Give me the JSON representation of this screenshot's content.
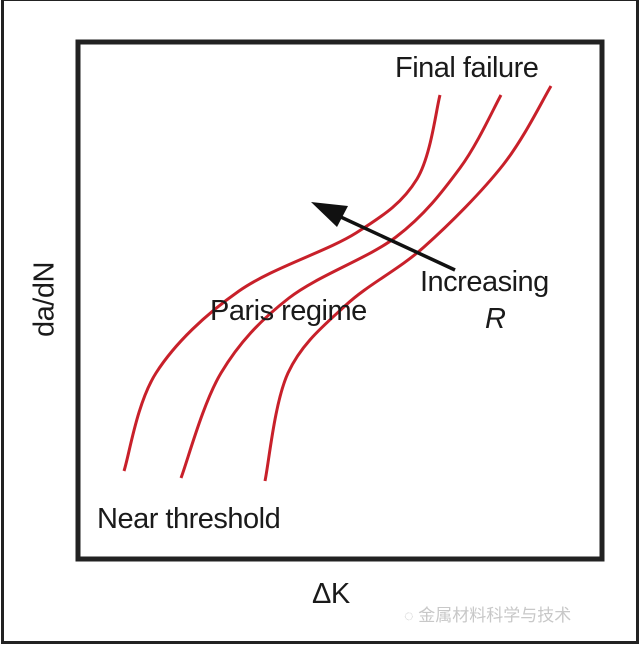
{
  "diagram": {
    "y_axis_label": "da/dN",
    "x_axis_label": "ΔK",
    "annotations": {
      "top": "Final failure",
      "middle": "Paris regime",
      "bottom": "Near threshold",
      "arrow_label_line1": "Increasing",
      "arrow_label_line2": "R"
    },
    "curve_count": 3,
    "colors": {
      "curve": "#c8202a",
      "frame": "#222222",
      "arrow": "#111111"
    }
  },
  "watermark": {
    "icon": "wechat-icon",
    "text": "金属材料科学与技术"
  }
}
